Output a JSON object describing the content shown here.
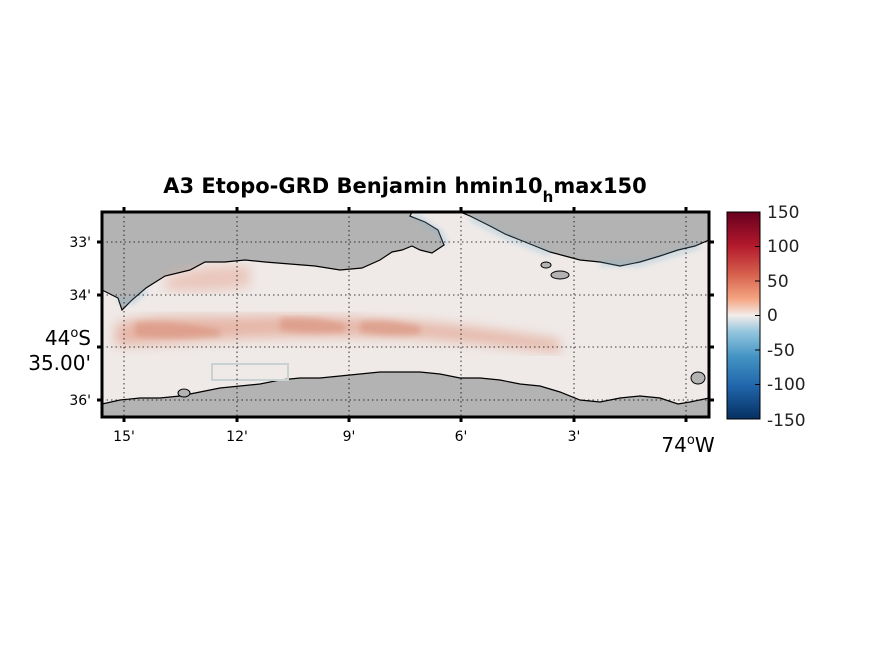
{
  "map": {
    "title_main": "A3 Etopo-GRD Benjamin hmin10",
    "title_sub": "h",
    "title_tail": "max150",
    "lon_ticks": [
      "15'",
      "12'",
      "9'",
      "6'",
      "3'"
    ],
    "lon_corner": {
      "deg": "74",
      "deg_sup": "o",
      "hemi": "W"
    },
    "lat_ticks": [
      "33'",
      "34'",
      "36'"
    ],
    "lat_corner": {
      "deg": "44",
      "deg_sup": "o",
      "hemi": "S",
      "min": "35.00'"
    },
    "land_color": "#b3b3b3",
    "coast_color": "#000000"
  },
  "colorbar": {
    "labels": [
      "150",
      "100",
      "50",
      "0",
      "-50",
      "-100",
      "-150"
    ],
    "colors": [
      "#67001f",
      "#b2182b",
      "#d6604d",
      "#f4a582",
      "#f2ecea",
      "#92c5de",
      "#4393c3",
      "#2166ac",
      "#053061"
    ]
  }
}
